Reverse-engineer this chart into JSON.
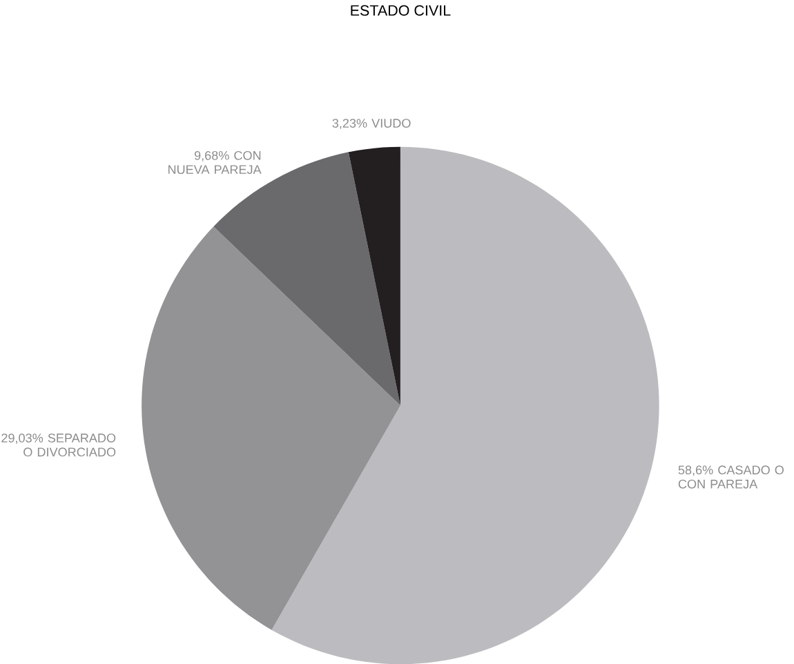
{
  "chart_data": {
    "type": "pie",
    "title": "ESTADO CIVIL",
    "categories": [
      "CASADO O CON PAREJA",
      "SEPARADO O DIVORCIADO",
      "CON NUEVA PAREJA",
      "VIUDO"
    ],
    "values": [
      58.6,
      29.03,
      9.68,
      3.23
    ],
    "value_labels": [
      "58,6%",
      "29,03%",
      "9,68%",
      "3,23%"
    ],
    "colors": [
      "#bcbcc0",
      "#939396",
      "#6a6a6d",
      "#231f20"
    ]
  }
}
